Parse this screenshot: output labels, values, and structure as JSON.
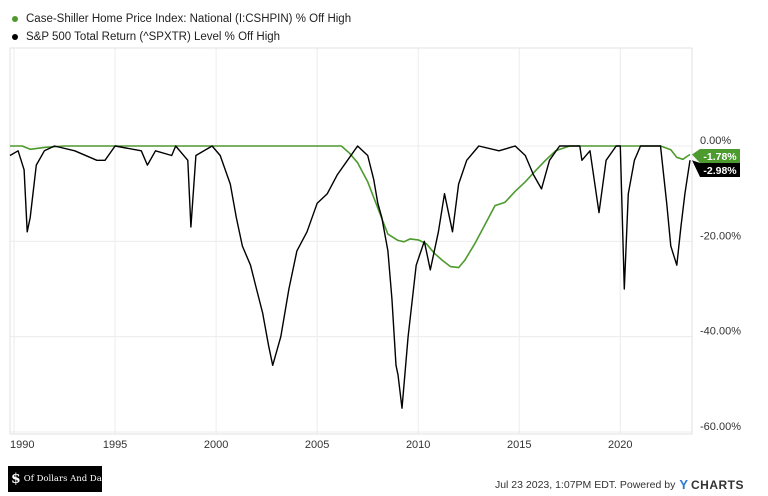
{
  "legend": [
    {
      "label": "Case-Shiller Home Price Index: National (I:CSHPIN) % Off High",
      "color": "#4d9a2e"
    },
    {
      "label": "S&P 500 Total Return (^SPXTR) Level % Off High",
      "color": "#000000"
    }
  ],
  "footer": {
    "logo_mark": "$",
    "logo_text": "Of Dollars And Data",
    "timestamp": "Jul 23 2023, 1:07PM EDT. Powered by ",
    "brand_y": "Y",
    "brand_rest": "CHARTS"
  },
  "chart_data": {
    "type": "line",
    "xlabel": "",
    "ylabel": "",
    "xlim": [
      1989.8,
      2023.55
    ],
    "ylim": [
      -60,
      0
    ],
    "x_ticks": [
      "1990",
      "1995",
      "2000",
      "2005",
      "2010",
      "2015",
      "2020"
    ],
    "y_ticks": [
      "0.00%",
      "-20.00%",
      "-40.00%",
      "-60.00%"
    ],
    "grid": true,
    "legend_position": "top-left",
    "end_labels": [
      "-1.78%",
      "-2.98%"
    ],
    "series": [
      {
        "name": "Case-Shiller Home Price Index: National (I:CSHPIN) % Off High",
        "color": "#4d9a2e",
        "x": [
          1989.8,
          1990.4,
          1990.8,
          1991.5,
          1992.5,
          2006.2,
          2006.6,
          2007.0,
          2007.5,
          2008.0,
          2008.5,
          2009.0,
          2009.3,
          2009.6,
          2010.0,
          2010.4,
          2010.8,
          2011.2,
          2011.6,
          2012.0,
          2012.3,
          2012.8,
          2013.3,
          2013.8,
          2014.3,
          2014.8,
          2015.3,
          2015.8,
          2016.3,
          2016.8,
          2017.5,
          2018.0,
          2019.0,
          2021.0,
          2022.0,
          2022.5,
          2022.8,
          2023.1,
          2023.3,
          2023.45
        ],
        "y": [
          0,
          0,
          -0.7,
          -0.3,
          0,
          0,
          -1.5,
          -3.5,
          -7.5,
          -13,
          -18.5,
          -19.8,
          -20.1,
          -19.5,
          -19.7,
          -20.5,
          -22.5,
          -24.0,
          -25.3,
          -25.5,
          -24.0,
          -20.5,
          -16.5,
          -12.5,
          -11.8,
          -9.5,
          -7.5,
          -5.2,
          -3.0,
          -1.0,
          0,
          0,
          0,
          0,
          0,
          -0.8,
          -2.4,
          -2.8,
          -2.2,
          -1.78
        ]
      },
      {
        "name": "S&P 500 Total Return (^SPXTR) Level % Off High",
        "color": "#000000",
        "x": [
          1989.8,
          1990.2,
          1990.5,
          1990.65,
          1990.8,
          1991.1,
          1991.5,
          1992.0,
          1993.0,
          1994.1,
          1994.5,
          1995.0,
          1996.3,
          1996.6,
          1997.0,
          1997.8,
          1998.0,
          1998.6,
          1998.75,
          1999.0,
          1999.8,
          2000.2,
          2000.7,
          2001.0,
          2001.3,
          2001.7,
          2002.0,
          2002.3,
          2002.6,
          2002.8,
          2003.2,
          2003.6,
          2004.0,
          2004.5,
          2005.0,
          2005.5,
          2006.0,
          2006.5,
          2007.0,
          2007.5,
          2007.8,
          2008.0,
          2008.2,
          2008.5,
          2008.7,
          2008.9,
          2009.0,
          2009.2,
          2009.5,
          2009.9,
          2010.3,
          2010.6,
          2011.0,
          2011.3,
          2011.7,
          2012.0,
          2012.4,
          2013.0,
          2014.0,
          2014.8,
          2015.3,
          2015.7,
          2016.1,
          2016.5,
          2017.0,
          2017.5,
          2018.0,
          2018.1,
          2018.5,
          2018.95,
          2019.3,
          2019.8,
          2020.0,
          2020.2,
          2020.4,
          2020.7,
          2021.0,
          2021.5,
          2021.99,
          2022.3,
          2022.5,
          2022.8,
          2023.0,
          2023.2,
          2023.45
        ],
        "y": [
          -2,
          -1,
          -5,
          -18,
          -15,
          -4,
          -1,
          0,
          -1,
          -3,
          -3,
          0,
          -1,
          -4,
          -1,
          -2,
          0,
          -3,
          -17,
          -2,
          0,
          -2,
          -8,
          -15,
          -21,
          -25,
          -30,
          -35,
          -42,
          -46,
          -40,
          -30,
          -22,
          -18,
          -12,
          -10,
          -6,
          -3,
          0,
          -2,
          -7,
          -12,
          -15,
          -22,
          -32,
          -46,
          -48,
          -55,
          -40,
          -25,
          -20,
          -26,
          -18,
          -10,
          -18,
          -8,
          -3,
          0,
          -1,
          0,
          -2,
          -6,
          -9,
          -3,
          0,
          0,
          0,
          -3,
          -1,
          -14,
          -3,
          0,
          0,
          -30,
          -10,
          -3,
          0,
          0,
          0,
          -12,
          -21,
          -25,
          -17,
          -10,
          -2.98
        ]
      }
    ]
  }
}
